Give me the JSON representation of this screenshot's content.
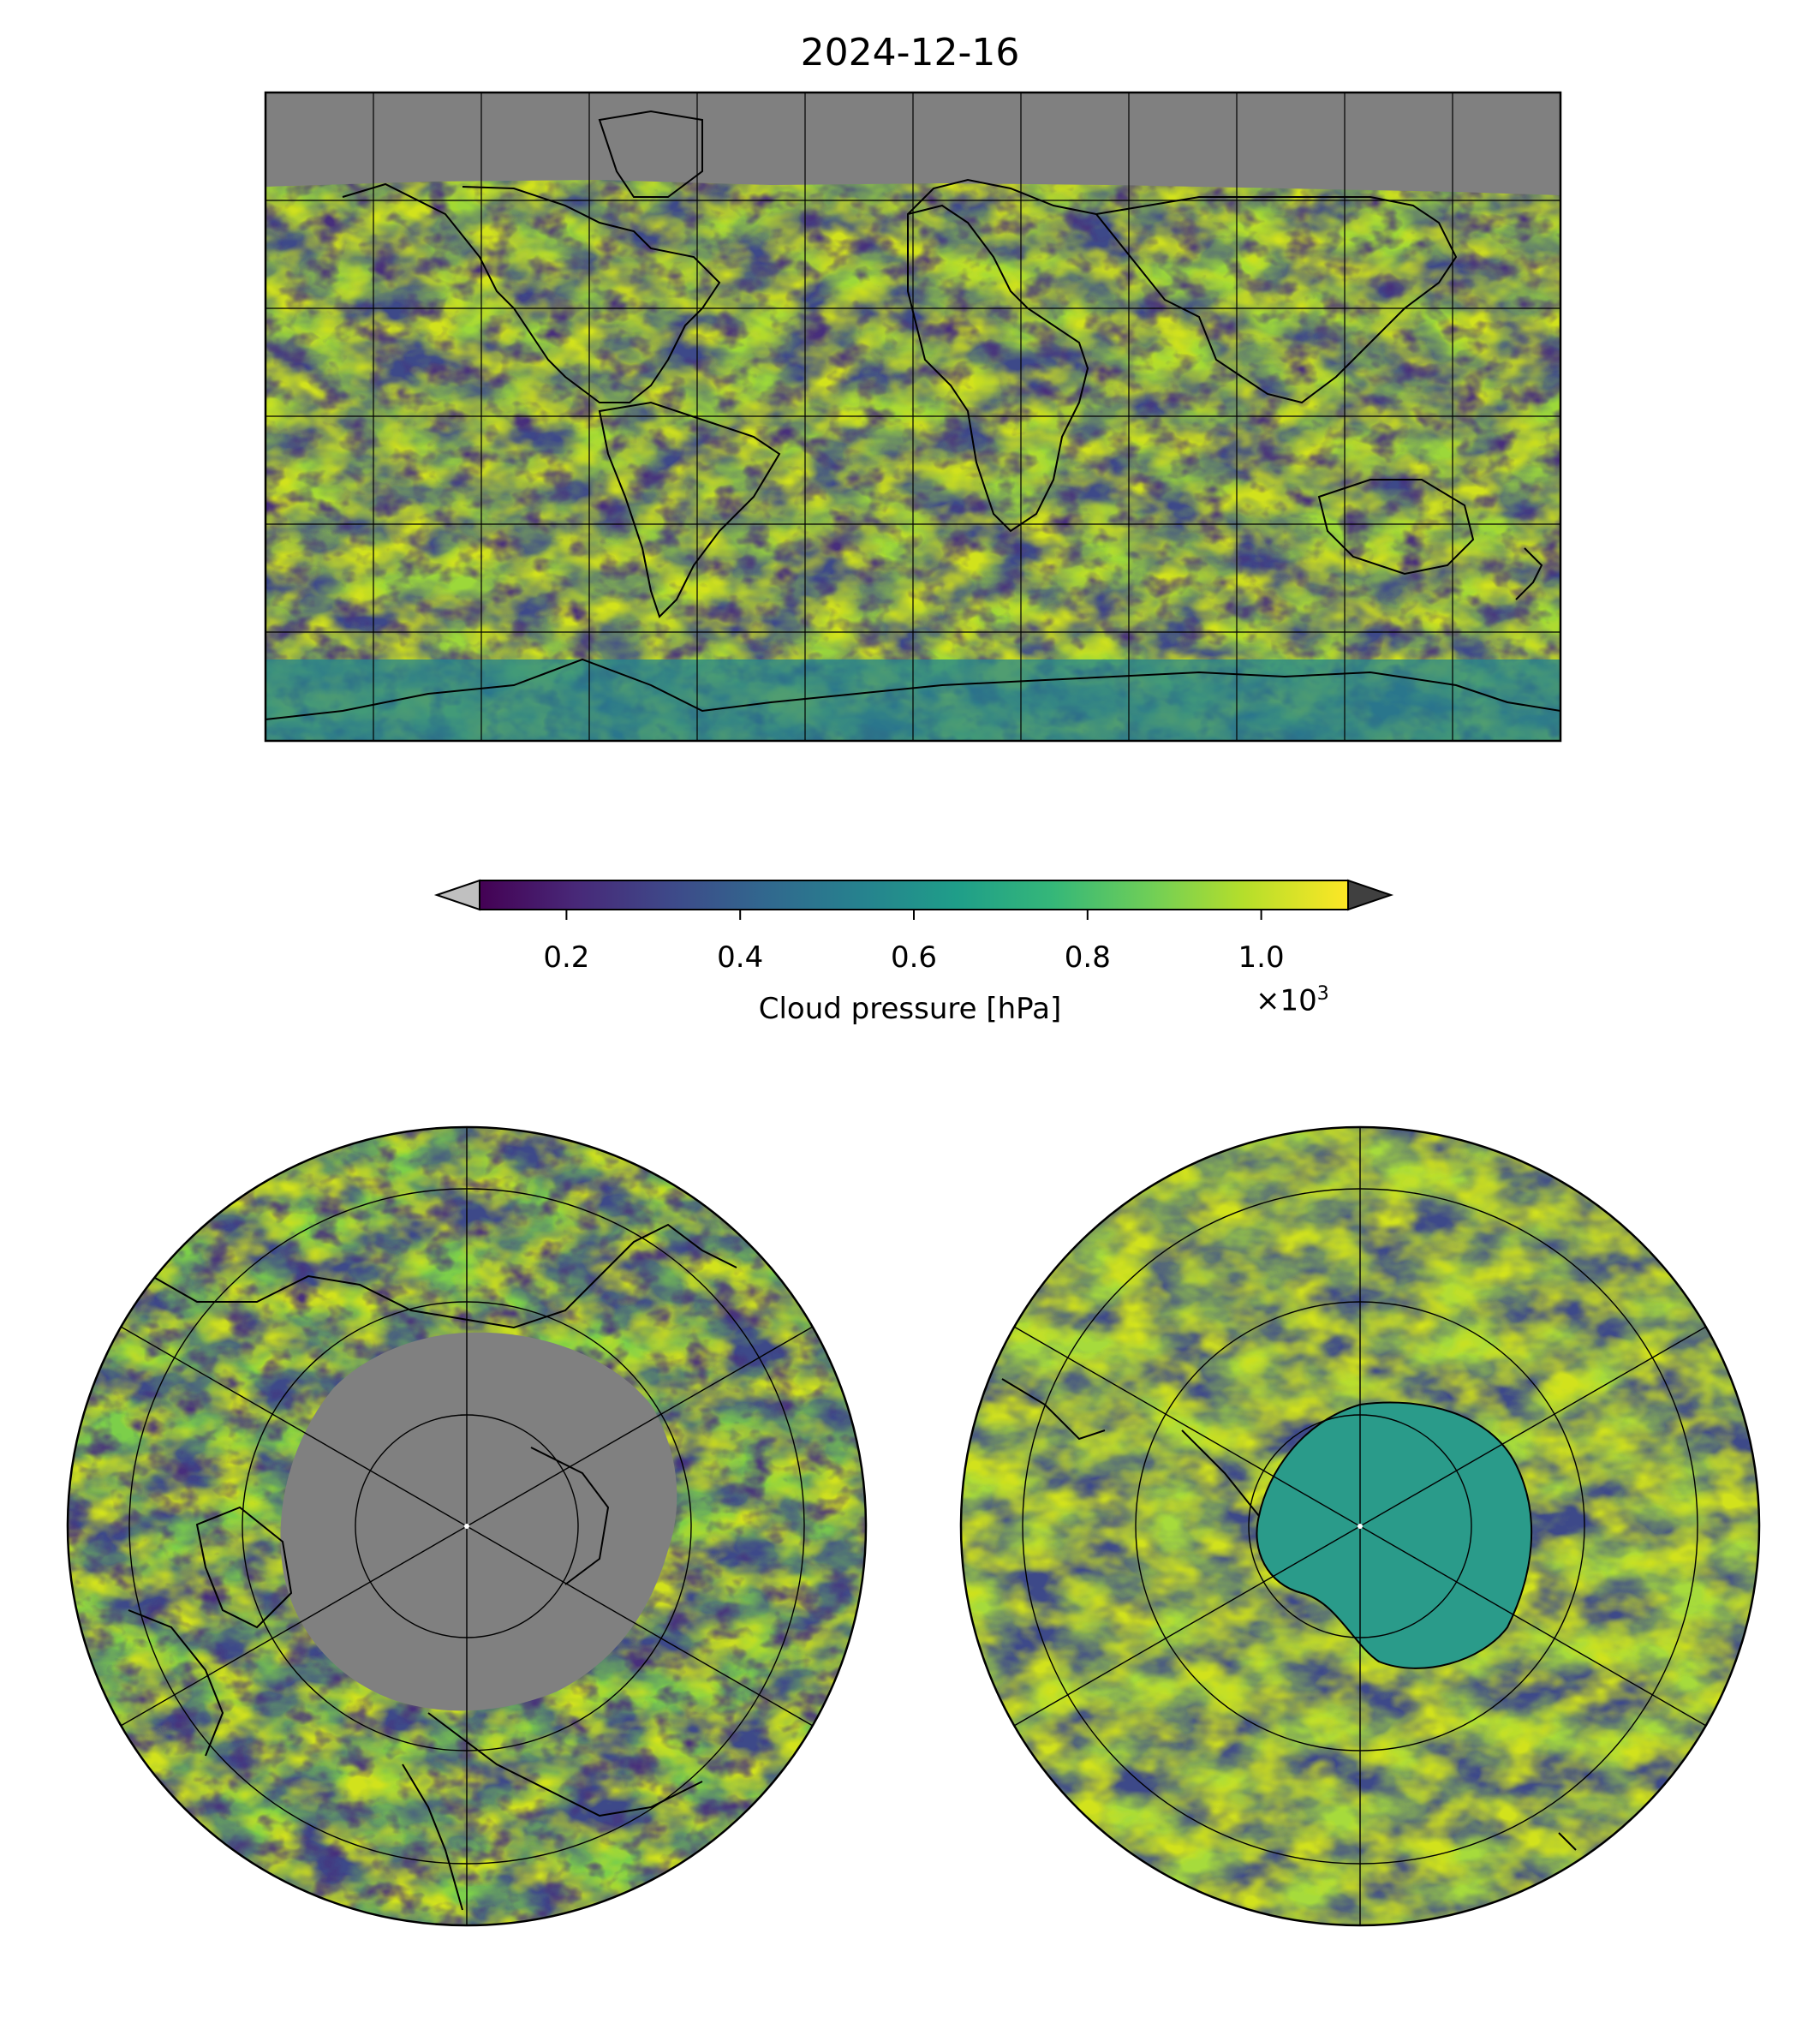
{
  "figure": {
    "title": "2024-12-16"
  },
  "colorbar": {
    "label": "Cloud pressure [hPa]",
    "ticks": [
      "0.2",
      "0.4",
      "0.6",
      "0.8",
      "1.0"
    ],
    "tick_values": [
      0.2,
      0.4,
      0.6,
      0.8,
      1.0
    ],
    "range": [
      0.1,
      1.1
    ],
    "multiplier_base": "×10",
    "multiplier_exp": "3",
    "colormap": "viridis",
    "under_color": "#c0c0c0",
    "over_color": "#404040",
    "extend": "both"
  },
  "maps": {
    "global": {
      "projection": "plate-carree",
      "no_data_color": "#808080"
    },
    "north_polar": {
      "projection": "north-polar-stereographic"
    },
    "south_polar": {
      "projection": "south-polar-stereographic"
    }
  },
  "colors": {
    "viridis": [
      "#440154",
      "#482878",
      "#3e4989",
      "#31688e",
      "#26828e",
      "#1f9e89",
      "#35b779",
      "#6ece58",
      "#b5de2b",
      "#fde725"
    ],
    "no_data": "#808080"
  }
}
